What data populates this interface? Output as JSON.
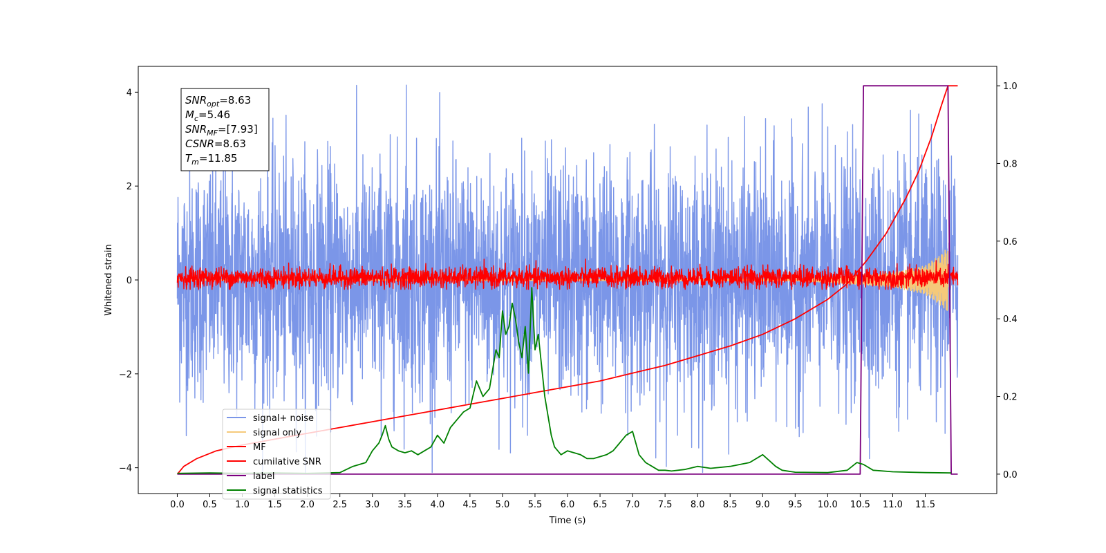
{
  "chart_data": {
    "type": "line",
    "xlabel": "Time (s)",
    "ylabel": "Whitened strain",
    "xlim": [
      -0.6,
      12.6
    ],
    "ylim": [
      -4.55,
      4.55
    ],
    "y2lim": [
      -0.05,
      1.05
    ],
    "xticks": [
      0.0,
      0.5,
      1.0,
      1.5,
      2.0,
      2.5,
      3.0,
      3.5,
      4.0,
      4.5,
      5.0,
      5.5,
      6.0,
      6.5,
      7.0,
      7.5,
      8.0,
      8.5,
      9.0,
      9.5,
      10.0,
      10.5,
      11.0,
      11.5
    ],
    "xtick_labels": [
      "0.0",
      "0.5",
      "1.0",
      "1.5",
      "2.0",
      "2.5",
      "3.0",
      "3.5",
      "4.0",
      "4.5",
      "5.0",
      "5.5",
      "6.0",
      "6.5",
      "7.0",
      "7.5",
      "8.0",
      "8.5",
      "9.0",
      "9.5",
      "10.0",
      "10.5",
      "11.0",
      "11.5"
    ],
    "yticks": [
      -4,
      -2,
      0,
      2,
      4
    ],
    "ytick_labels": [
      "−4",
      "−2",
      "0",
      "2",
      "4"
    ],
    "y2ticks": [
      0.0,
      0.2,
      0.4,
      0.6,
      0.8,
      1.0
    ],
    "y2tick_labels": [
      "0.0",
      "0.2",
      "0.4",
      "0.6",
      "0.8",
      "1.0"
    ],
    "grid": false,
    "legend_position": "lower-left",
    "annotation": {
      "lines": [
        {
          "symbol": "SNR",
          "sub": "opt",
          "value": "=8.63"
        },
        {
          "symbol": "M",
          "sub": "c",
          "value": "=5.46"
        },
        {
          "symbol": "SNR",
          "sub": "MF",
          "value": "=[7.93]"
        },
        {
          "symbol": "CSNR",
          "sub": "",
          "value": "=8.63"
        },
        {
          "symbol": "T",
          "sub": "m",
          "value": "=11.85"
        }
      ]
    },
    "series": [
      {
        "name": "signal+ noise",
        "axis": "left",
        "color": "#7b96e8",
        "kind": "noise_band",
        "t_range": [
          0.0,
          12.0
        ],
        "typical_range": [
          -2.3,
          2.3
        ],
        "peak_range": [
          -4.1,
          4.15
        ],
        "max_value": 4.15,
        "max_at": 3.52
      },
      {
        "name": "signal only",
        "axis": "left",
        "color": "#f5c97a",
        "kind": "chirp",
        "t_range": [
          0.0,
          11.85
        ],
        "envelope_t": [
          0.0,
          9.5,
          10.0,
          10.5,
          11.0,
          11.5,
          11.75,
          11.85
        ],
        "envelope_amp": [
          0.0,
          0.02,
          0.05,
          0.1,
          0.15,
          0.3,
          0.55,
          0.7
        ]
      },
      {
        "name": "MF",
        "axis": "left",
        "color": "#ff0000",
        "kind": "noise_band",
        "t_range": [
          0.0,
          12.0
        ],
        "typical_range": [
          -0.15,
          0.25
        ],
        "peak_range": [
          -0.2,
          0.45
        ]
      },
      {
        "name": "cumilative SNR",
        "axis": "right",
        "color": "#ff0000",
        "x": [
          0.0,
          0.1,
          0.3,
          0.6,
          1.0,
          1.5,
          2.0,
          2.5,
          3.0,
          3.5,
          4.0,
          4.5,
          5.0,
          5.5,
          6.0,
          6.5,
          7.0,
          7.5,
          8.0,
          8.5,
          9.0,
          9.5,
          10.0,
          10.3,
          10.6,
          10.9,
          11.2,
          11.4,
          11.6,
          11.75,
          11.85,
          12.0
        ],
        "y": [
          0.0,
          0.02,
          0.04,
          0.06,
          0.075,
          0.09,
          0.105,
          0.12,
          0.135,
          0.15,
          0.165,
          0.18,
          0.195,
          0.21,
          0.225,
          0.24,
          0.26,
          0.28,
          0.305,
          0.33,
          0.36,
          0.4,
          0.45,
          0.49,
          0.55,
          0.62,
          0.71,
          0.78,
          0.87,
          0.95,
          1.0,
          1.0
        ]
      },
      {
        "name": "label",
        "axis": "right",
        "color": "#7b007f",
        "x": [
          0.0,
          10.5,
          10.55,
          11.85,
          11.9,
          12.0
        ],
        "y": [
          0.0,
          0.0,
          1.0,
          1.0,
          0.0,
          0.0
        ]
      },
      {
        "name": "signal statistics",
        "axis": "right",
        "color": "#008000",
        "x": [
          0.0,
          0.5,
          1.0,
          1.5,
          2.0,
          2.5,
          2.7,
          2.9,
          3.0,
          3.1,
          3.15,
          3.2,
          3.25,
          3.3,
          3.4,
          3.5,
          3.6,
          3.7,
          3.8,
          3.9,
          4.0,
          4.1,
          4.2,
          4.3,
          4.4,
          4.5,
          4.6,
          4.7,
          4.8,
          4.85,
          4.9,
          4.95,
          5.0,
          5.05,
          5.1,
          5.15,
          5.2,
          5.25,
          5.3,
          5.35,
          5.4,
          5.45,
          5.5,
          5.55,
          5.6,
          5.65,
          5.7,
          5.75,
          5.8,
          5.9,
          6.0,
          6.1,
          6.2,
          6.3,
          6.4,
          6.5,
          6.6,
          6.7,
          6.8,
          6.9,
          7.0,
          7.1,
          7.2,
          7.3,
          7.4,
          7.5,
          7.6,
          7.8,
          8.0,
          8.2,
          8.5,
          8.8,
          9.0,
          9.1,
          9.2,
          9.3,
          9.5,
          10.0,
          10.3,
          10.45,
          10.55,
          10.7,
          11.0,
          11.5,
          11.9
        ],
        "y": [
          0.002,
          0.003,
          0.002,
          0.003,
          0.002,
          0.004,
          0.02,
          0.03,
          0.06,
          0.08,
          0.1,
          0.125,
          0.09,
          0.07,
          0.06,
          0.055,
          0.06,
          0.05,
          0.06,
          0.07,
          0.1,
          0.08,
          0.12,
          0.14,
          0.16,
          0.17,
          0.24,
          0.2,
          0.22,
          0.27,
          0.32,
          0.3,
          0.42,
          0.36,
          0.38,
          0.44,
          0.4,
          0.34,
          0.3,
          0.38,
          0.26,
          0.48,
          0.32,
          0.36,
          0.28,
          0.2,
          0.15,
          0.1,
          0.07,
          0.05,
          0.06,
          0.055,
          0.05,
          0.04,
          0.04,
          0.045,
          0.05,
          0.06,
          0.08,
          0.1,
          0.11,
          0.05,
          0.03,
          0.02,
          0.01,
          0.01,
          0.008,
          0.012,
          0.02,
          0.015,
          0.02,
          0.03,
          0.05,
          0.035,
          0.02,
          0.01,
          0.005,
          0.004,
          0.01,
          0.03,
          0.025,
          0.01,
          0.006,
          0.004,
          0.003
        ]
      }
    ]
  }
}
